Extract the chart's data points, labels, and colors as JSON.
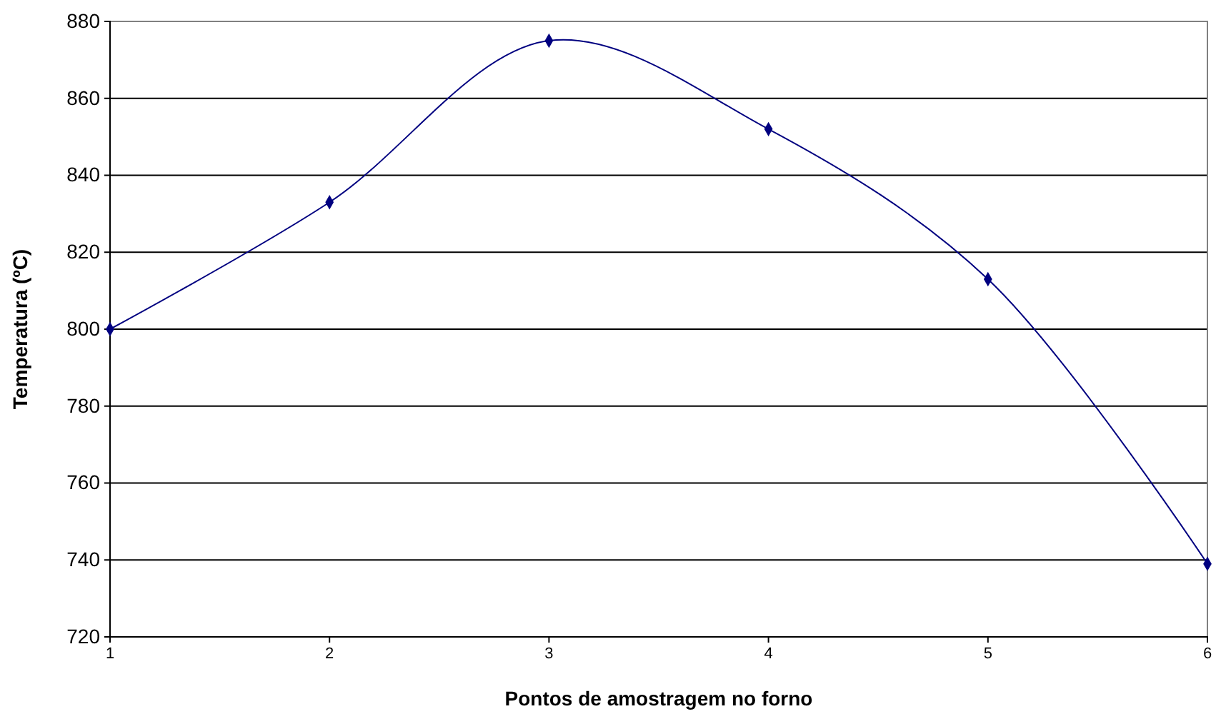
{
  "chart_data": {
    "type": "line",
    "xlabel": "Pontos de amostragem no forno",
    "ylabel": "Temperatura (ºC)",
    "x": [
      1,
      2,
      3,
      4,
      5,
      6
    ],
    "series": [
      {
        "color": "#000080",
        "values": [
          800,
          833,
          875,
          852,
          813,
          739
        ]
      }
    ],
    "xlim": [
      1,
      6
    ],
    "xticks": [
      1,
      2,
      3,
      4,
      5,
      6
    ],
    "ylim": [
      720,
      880
    ],
    "yticks": [
      720,
      740,
      760,
      780,
      800,
      820,
      840,
      860,
      880
    ],
    "grid": "y",
    "marker": "diamond",
    "line_style": "solid"
  }
}
